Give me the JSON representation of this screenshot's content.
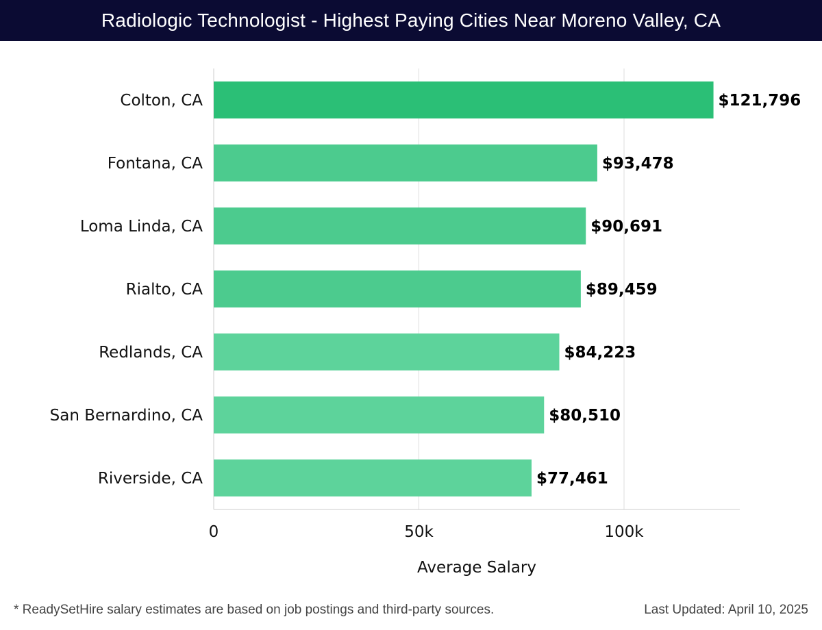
{
  "header": {
    "title": "Radiologic Technologist - Highest Paying Cities Near Moreno Valley, CA"
  },
  "chart_data": {
    "type": "bar",
    "orientation": "horizontal",
    "title": "Radiologic Technologist - Highest Paying Cities Near Moreno Valley, CA",
    "xlabel": "Average Salary",
    "ylabel": "",
    "xlim": [
      0,
      128000
    ],
    "x_ticks": [
      0,
      50000,
      100000
    ],
    "x_tick_labels": [
      "0",
      "50k",
      "100k"
    ],
    "grid": true,
    "categories": [
      "Colton, CA",
      "Fontana, CA",
      "Loma Linda, CA",
      "Rialto, CA",
      "Redlands, CA",
      "San Bernardino, CA",
      "Riverside, CA"
    ],
    "values": [
      121796,
      93478,
      90691,
      89459,
      84223,
      80510,
      77461
    ],
    "value_labels": [
      "$121,796",
      "$93,478",
      "$90,691",
      "$89,459",
      "$84,223",
      "$80,510",
      "$77,461"
    ],
    "colors": {
      "highlight": "#2bbf76",
      "bar": "#4ccb8e",
      "bar_light": "#5dd39b",
      "grid": "#dddddd",
      "axis": "#cccccc"
    }
  },
  "footer": {
    "note": "* ReadySetHire salary estimates are based on job postings and third-party sources.",
    "updated": "Last Updated: April 10, 2025"
  }
}
